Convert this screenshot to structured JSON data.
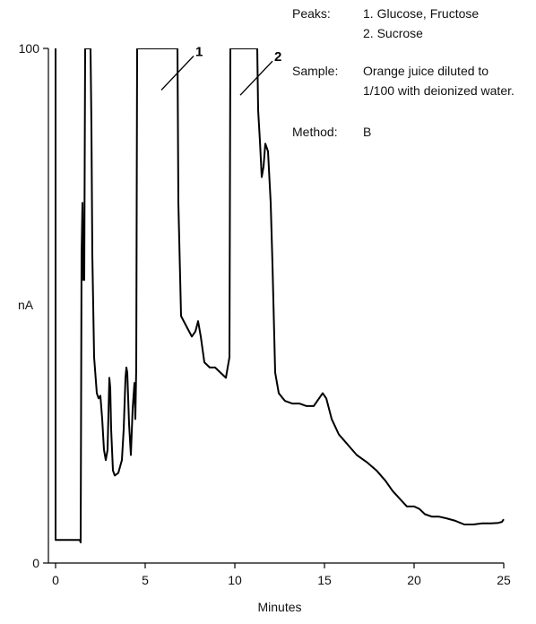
{
  "chart_data": {
    "type": "line",
    "xlabel": "Minutes",
    "ylabel": "nA",
    "xlim": [
      0,
      25
    ],
    "ylim": [
      0,
      100
    ],
    "x_ticks": [
      "0",
      "5",
      "10",
      "15",
      "20",
      "25"
    ],
    "y_ticks": [
      "0",
      "100"
    ],
    "grid": false,
    "series": [
      {
        "points": [
          [
            0,
            100
          ],
          [
            0,
            4.5
          ],
          [
            1.35,
            4.5
          ],
          [
            1.4,
            4.0
          ],
          [
            1.45,
            60
          ],
          [
            1.5,
            70
          ],
          [
            1.55,
            55
          ],
          [
            1.6,
            55
          ],
          [
            1.65,
            100
          ],
          [
            1.95,
            100
          ],
          [
            2.0,
            85
          ],
          [
            2.05,
            60
          ],
          [
            2.15,
            40
          ],
          [
            2.3,
            33
          ],
          [
            2.4,
            32
          ],
          [
            2.5,
            32.5
          ],
          [
            2.6,
            28
          ],
          [
            2.7,
            22
          ],
          [
            2.8,
            20
          ],
          [
            2.9,
            22
          ],
          [
            3.0,
            36
          ],
          [
            3.05,
            34
          ],
          [
            3.1,
            26
          ],
          [
            3.2,
            18
          ],
          [
            3.3,
            17
          ],
          [
            3.5,
            17.5
          ],
          [
            3.7,
            20
          ],
          [
            3.8,
            26
          ],
          [
            3.9,
            36
          ],
          [
            3.95,
            38
          ],
          [
            4.0,
            37
          ],
          [
            4.1,
            27
          ],
          [
            4.2,
            21
          ],
          [
            4.3,
            30
          ],
          [
            4.4,
            35
          ],
          [
            4.45,
            28
          ],
          [
            4.5,
            38
          ],
          [
            4.55,
            100
          ],
          [
            6.8,
            100
          ],
          [
            6.85,
            70
          ],
          [
            7.0,
            48
          ],
          [
            7.3,
            46
          ],
          [
            7.6,
            44
          ],
          [
            7.8,
            45
          ],
          [
            7.95,
            47
          ],
          [
            8.1,
            44
          ],
          [
            8.3,
            39
          ],
          [
            8.6,
            38
          ],
          [
            8.9,
            38
          ],
          [
            9.2,
            37
          ],
          [
            9.5,
            36
          ],
          [
            9.7,
            40
          ],
          [
            9.75,
            100
          ],
          [
            11.25,
            100
          ],
          [
            11.3,
            88
          ],
          [
            11.4,
            82
          ],
          [
            11.5,
            75
          ],
          [
            11.6,
            77
          ],
          [
            11.7,
            81.5
          ],
          [
            11.85,
            80
          ],
          [
            12.0,
            70
          ],
          [
            12.1,
            58
          ],
          [
            12.25,
            37
          ],
          [
            12.45,
            33
          ],
          [
            12.8,
            31.5
          ],
          [
            13.2,
            31
          ],
          [
            13.6,
            31
          ],
          [
            14.0,
            30.5
          ],
          [
            14.4,
            30.5
          ],
          [
            14.7,
            32
          ],
          [
            14.9,
            33
          ],
          [
            15.1,
            32
          ],
          [
            15.4,
            28
          ],
          [
            15.8,
            25
          ],
          [
            16.3,
            23
          ],
          [
            16.8,
            21
          ],
          [
            17.4,
            19.5
          ],
          [
            17.9,
            18
          ],
          [
            18.4,
            16
          ],
          [
            18.8,
            14
          ],
          [
            19.2,
            12.5
          ],
          [
            19.6,
            11
          ],
          [
            20.0,
            11
          ],
          [
            20.3,
            10.5
          ],
          [
            20.6,
            9.5
          ],
          [
            21.0,
            9
          ],
          [
            21.4,
            9
          ],
          [
            21.8,
            8.7
          ],
          [
            22.3,
            8.2
          ],
          [
            22.8,
            7.5
          ],
          [
            23.3,
            7.5
          ],
          [
            23.8,
            7.7
          ],
          [
            24.3,
            7.7
          ],
          [
            24.7,
            7.8
          ],
          [
            24.9,
            8
          ],
          [
            25.0,
            8.5
          ]
        ]
      }
    ],
    "peak_markers": [
      {
        "label": "1",
        "x": 6.8,
        "y": 94
      },
      {
        "label": "2",
        "x": 11.2,
        "y": 93
      }
    ]
  },
  "info": {
    "peaks_label": "Peaks:",
    "peaks_line1": "1. Glucose, Fructose",
    "peaks_line2": "2. Sucrose",
    "sample_label": "Sample:",
    "sample_line1": "Orange juice diluted to",
    "sample_line2": "1/100 with deionized water.",
    "method_label": "Method:",
    "method_value": "B"
  },
  "colors": {
    "trace": "#000000",
    "axis": "#000000"
  }
}
